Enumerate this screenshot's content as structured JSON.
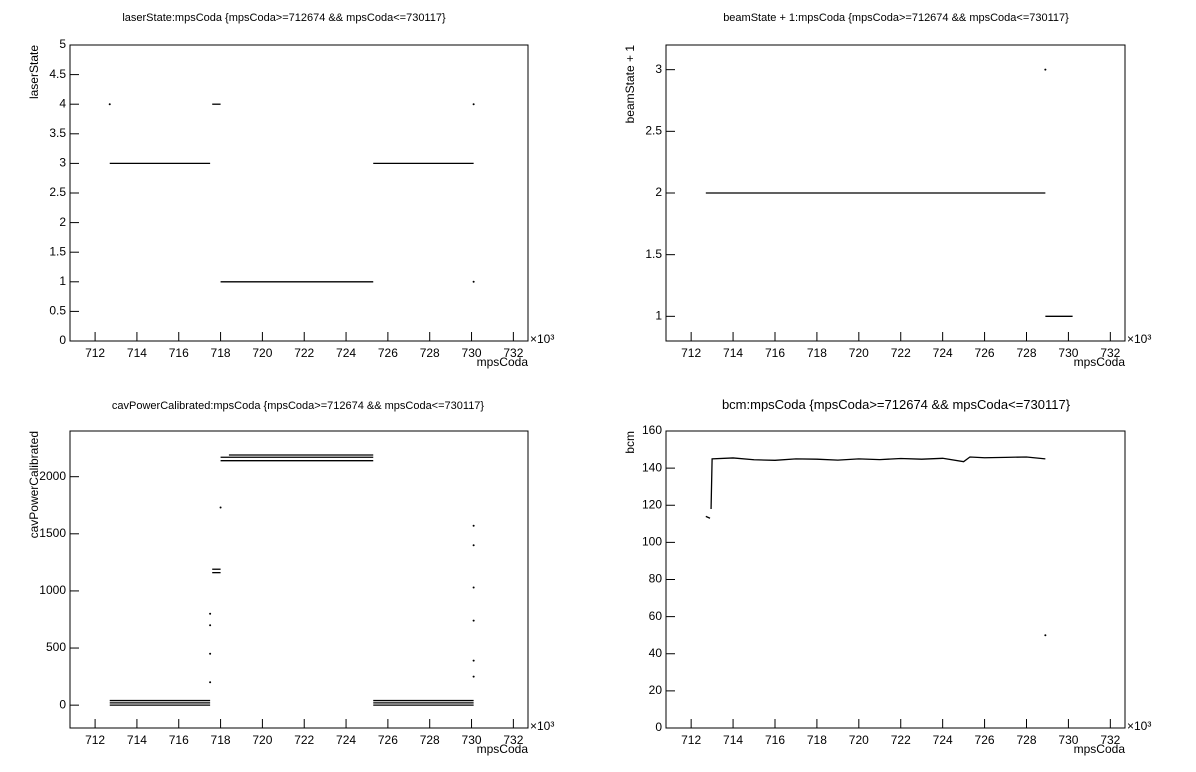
{
  "chart_data": [
    {
      "type": "line",
      "title": "laserState:mpsCoda {mpsCoda>=712674 && mpsCoda<=730117}",
      "x_label": "mpsCoda",
      "y_label": "laserState",
      "x_exponent": "×10³",
      "xlim": [
        710.8,
        732.7
      ],
      "xticks": [
        712,
        714,
        716,
        718,
        720,
        722,
        724,
        726,
        728,
        730,
        732
      ],
      "ylim": [
        0,
        5
      ],
      "yticks": [
        0,
        0.5,
        1,
        1.5,
        2,
        2.5,
        3,
        3.5,
        4,
        4.5,
        5
      ],
      "grid": false,
      "color": "#000000",
      "x": [
        712.7,
        717.5,
        null,
        712.7,
        null,
        717.6,
        718.0,
        null,
        718.0,
        725.3,
        null,
        725.3,
        730.1,
        null,
        730.1,
        null,
        730.1
      ],
      "values": [
        3,
        3,
        null,
        4,
        null,
        4,
        4,
        null,
        1,
        1,
        null,
        3,
        3,
        null,
        4,
        null,
        1
      ]
    },
    {
      "type": "line",
      "title": "beamState + 1:mpsCoda {mpsCoda>=712674 && mpsCoda<=730117}",
      "x_label": "mpsCoda",
      "y_label": "beamState + 1",
      "x_exponent": "×10³",
      "xlim": [
        710.8,
        732.7
      ],
      "xticks": [
        712,
        714,
        716,
        718,
        720,
        722,
        724,
        726,
        728,
        730,
        732
      ],
      "ylim": [
        0.8,
        3.2
      ],
      "yticks": [
        1,
        1.5,
        2,
        2.5,
        3
      ],
      "grid": false,
      "color": "#000000",
      "x": [
        712.7,
        728.9,
        null,
        728.9,
        730.2,
        null,
        728.9
      ],
      "values": [
        2,
        2,
        null,
        1,
        1,
        null,
        3
      ]
    },
    {
      "type": "line",
      "title": "cavPowerCalibrated:mpsCoda {mpsCoda>=712674 && mpsCoda<=730117}",
      "x_label": "mpsCoda",
      "y_label": "cavPowerCalibrated",
      "x_exponent": "×10³",
      "xlim": [
        710.8,
        732.7
      ],
      "xticks": [
        712,
        714,
        716,
        718,
        720,
        722,
        724,
        726,
        728,
        730,
        732
      ],
      "ylim": [
        -200,
        2400
      ],
      "yticks": [
        0,
        500,
        1000,
        1500,
        2000
      ],
      "grid": false,
      "color": "#000000",
      "x": [
        712.7,
        717.5,
        null,
        712.7,
        717.5,
        null,
        712.7,
        717.5,
        null,
        717.5,
        null,
        717.5,
        null,
        717.5,
        null,
        717.5,
        null,
        717.6,
        718.0,
        null,
        717.6,
        718.0,
        null,
        718.0,
        null,
        718.0,
        725.3,
        null,
        718.0,
        725.3,
        null,
        718.4,
        725.3,
        null,
        725.3,
        730.1,
        null,
        725.3,
        730.1,
        null,
        725.3,
        730.1,
        null,
        730.1,
        null,
        730.1,
        null,
        730.1,
        null,
        730.1,
        null,
        730.1,
        null,
        730.1
      ],
      "values": [
        0,
        0,
        null,
        20,
        20,
        null,
        40,
        40,
        null,
        200,
        null,
        450,
        null,
        700,
        null,
        800,
        null,
        1160,
        1160,
        null,
        1190,
        1190,
        null,
        1730,
        null,
        2140,
        2140,
        null,
        2170,
        2170,
        null,
        2190,
        2190,
        null,
        0,
        0,
        null,
        20,
        20,
        null,
        40,
        40,
        null,
        1570,
        null,
        1400,
        null,
        1030,
        null,
        740,
        null,
        390,
        null,
        250
      ]
    },
    {
      "type": "line",
      "title": "bcm:mpsCoda {mpsCoda>=712674 && mpsCoda<=730117}",
      "x_label": "mpsCoda",
      "y_label": "bcm",
      "x_exponent": "×10³",
      "xlim": [
        710.8,
        732.7
      ],
      "xticks": [
        712,
        714,
        716,
        718,
        720,
        722,
        724,
        726,
        728,
        730,
        732
      ],
      "ylim": [
        0,
        160
      ],
      "yticks": [
        0,
        20,
        40,
        60,
        80,
        100,
        120,
        140,
        160
      ],
      "grid": false,
      "color": "#000000",
      "x": [
        712.7,
        712.9,
        null,
        712.95,
        713.0,
        714,
        715,
        716,
        717,
        718,
        719,
        720,
        721,
        722,
        723,
        724,
        725,
        725.3,
        726,
        727,
        728,
        728.9,
        null,
        728.9
      ],
      "values": [
        114,
        113,
        null,
        118,
        145,
        145.5,
        144.5,
        144.2,
        145,
        144.8,
        144.3,
        145,
        144.6,
        145.2,
        144.8,
        145.3,
        143.5,
        146,
        145.6,
        145.8,
        146,
        145,
        null,
        50
      ]
    }
  ]
}
